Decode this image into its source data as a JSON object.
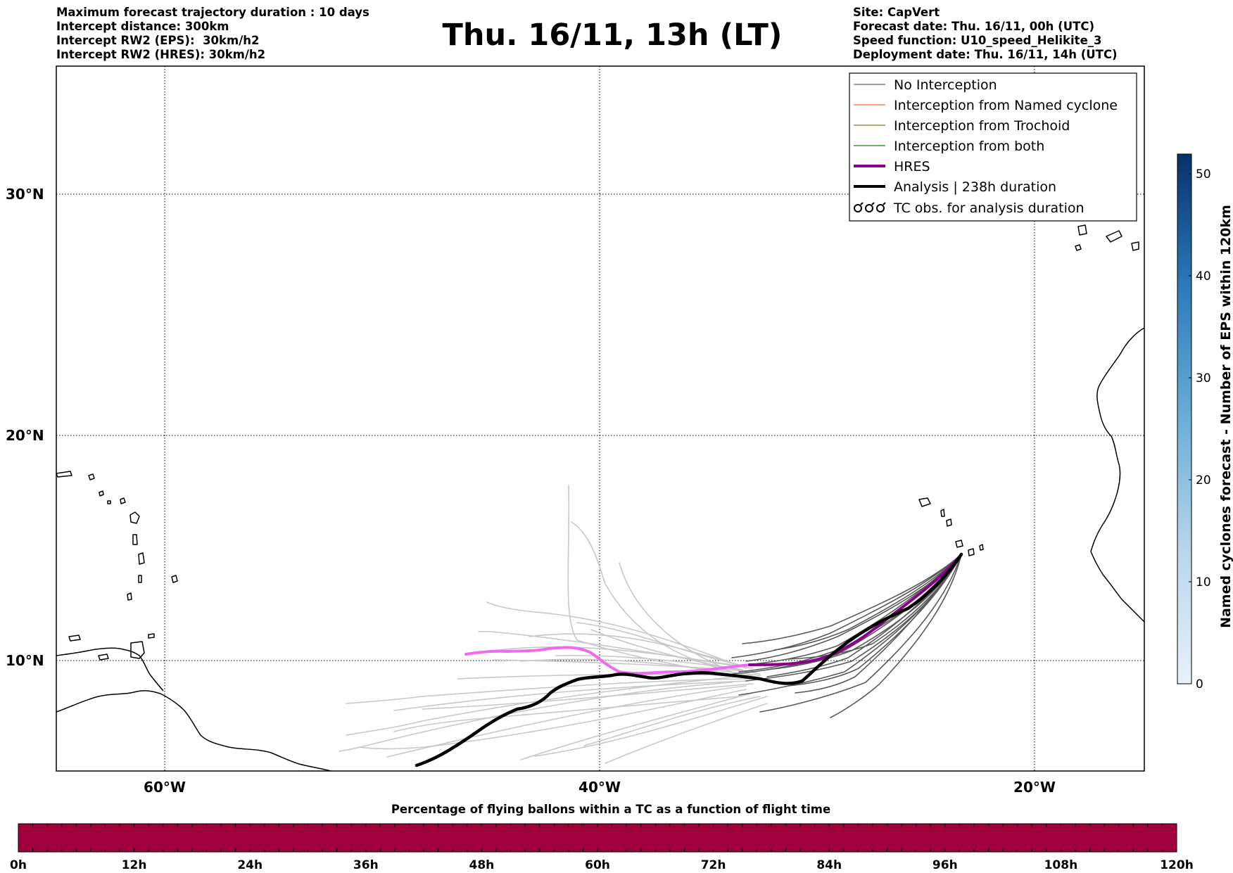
{
  "header": {
    "title": "Thu. 16/11, 13h (LT)",
    "left_lines": [
      "Maximum forecast trajectory duration : 10 days",
      "Intercept distance: 300km",
      "Intercept RW2 (EPS):  30km/h2",
      "Intercept RW2 (HRES): 30km/h2"
    ],
    "right_lines": [
      "Site: CapVert",
      "Forecast date: Thu. 16/11, 00h (UTC)",
      "Speed function: U10_speed_Helikite_3",
      "Deployment date: Thu. 16/11, 14h (UTC)"
    ]
  },
  "map": {
    "lon_ticks": [
      "60°W",
      "40°W",
      "20°W"
    ],
    "lat_ticks": [
      "30°N",
      "20°N",
      "10°N"
    ],
    "extent": {
      "lon": [
        -65,
        -15
      ],
      "lat": [
        5.4,
        34.6
      ]
    }
  },
  "legend": {
    "items": [
      {
        "label": "No Interception",
        "color": "#808080",
        "style": "thin"
      },
      {
        "label": "Interception from Named cyclone",
        "color": "#ff7f50",
        "style": "thin"
      },
      {
        "label": "Interception from Trochoid",
        "color": "#9c8f3a",
        "style": "thin"
      },
      {
        "label": "Interception from both",
        "color": "#3a9a3a",
        "style": "thin"
      },
      {
        "label": "HRES",
        "color": "#8b008b",
        "style": "thick"
      },
      {
        "label": "Analysis | 238h duration",
        "color": "#000000",
        "style": "thick"
      },
      {
        "label": "TC obs. for analysis duration",
        "color": "#000000",
        "style": "tc-icon"
      }
    ]
  },
  "colorbar_right": {
    "label": "Named cyclones forecast - Number of EPS within 120km",
    "ticks": [
      "0",
      "10",
      "20",
      "30",
      "40",
      "50"
    ],
    "range": [
      0,
      52
    ],
    "color_low": "#e8f1fa",
    "color_high": "#08306b"
  },
  "colorbar_bottom": {
    "title": "Percentage of flying ballons within a TC as a function of flight time",
    "ticks": [
      "0h",
      "12h",
      "24h",
      "36h",
      "48h",
      "60h",
      "72h",
      "84h",
      "96h",
      "108h",
      "120h"
    ],
    "fill_color": "#a0003c"
  },
  "colors": {
    "eps_recent": "#555555",
    "eps_older": "#c8c8c8",
    "hres": "#8b008b",
    "hres_faded": "#ee6aee",
    "analysis": "#000000"
  }
}
